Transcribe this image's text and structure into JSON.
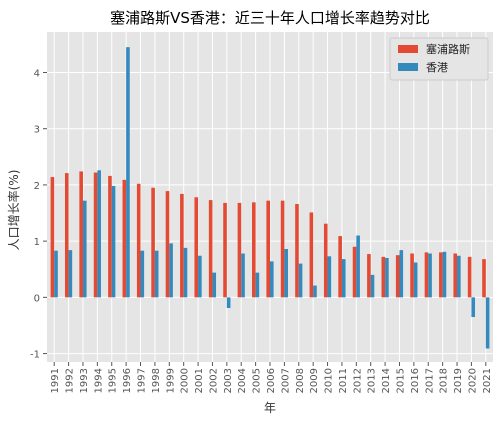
{
  "chart_data": {
    "type": "bar",
    "title": "塞浦路斯VS香港：近三十年人口增长率趋势对比",
    "xlabel": "年",
    "ylabel": "人口增长率(%)",
    "categories": [
      "1991",
      "1992",
      "1993",
      "1994",
      "1995",
      "1996",
      "1997",
      "1998",
      "1999",
      "2000",
      "2001",
      "2002",
      "2003",
      "2004",
      "2005",
      "2006",
      "2007",
      "2008",
      "2009",
      "2010",
      "2011",
      "2012",
      "2013",
      "2014",
      "2015",
      "2016",
      "2017",
      "2018",
      "2019",
      "2020",
      "2021"
    ],
    "series": [
      {
        "name": "塞浦路斯",
        "color": "#e24a33",
        "values": [
          2.14,
          2.21,
          2.24,
          2.22,
          2.16,
          2.09,
          2.02,
          1.95,
          1.89,
          1.84,
          1.78,
          1.73,
          1.68,
          1.68,
          1.69,
          1.72,
          1.72,
          1.66,
          1.51,
          1.31,
          1.09,
          0.9,
          0.77,
          0.72,
          0.75,
          0.78,
          0.8,
          0.8,
          0.78,
          0.72,
          0.68
        ]
      },
      {
        "name": "香港",
        "color": "#348abd",
        "values": [
          0.83,
          0.84,
          1.72,
          2.26,
          1.98,
          4.45,
          0.83,
          0.83,
          0.96,
          0.88,
          0.74,
          0.44,
          -0.19,
          0.78,
          0.44,
          0.64,
          0.86,
          0.6,
          0.21,
          0.73,
          0.68,
          1.1,
          0.4,
          0.7,
          0.84,
          0.62,
          0.78,
          0.81,
          0.74,
          -0.35,
          -0.91
        ]
      }
    ],
    "ylim": [
      -1.15,
      4.72
    ],
    "yticks": [
      -1,
      0,
      1,
      2,
      3,
      4
    ],
    "grid": true,
    "legend_position": "top-right",
    "background": "#e5e5e5"
  }
}
